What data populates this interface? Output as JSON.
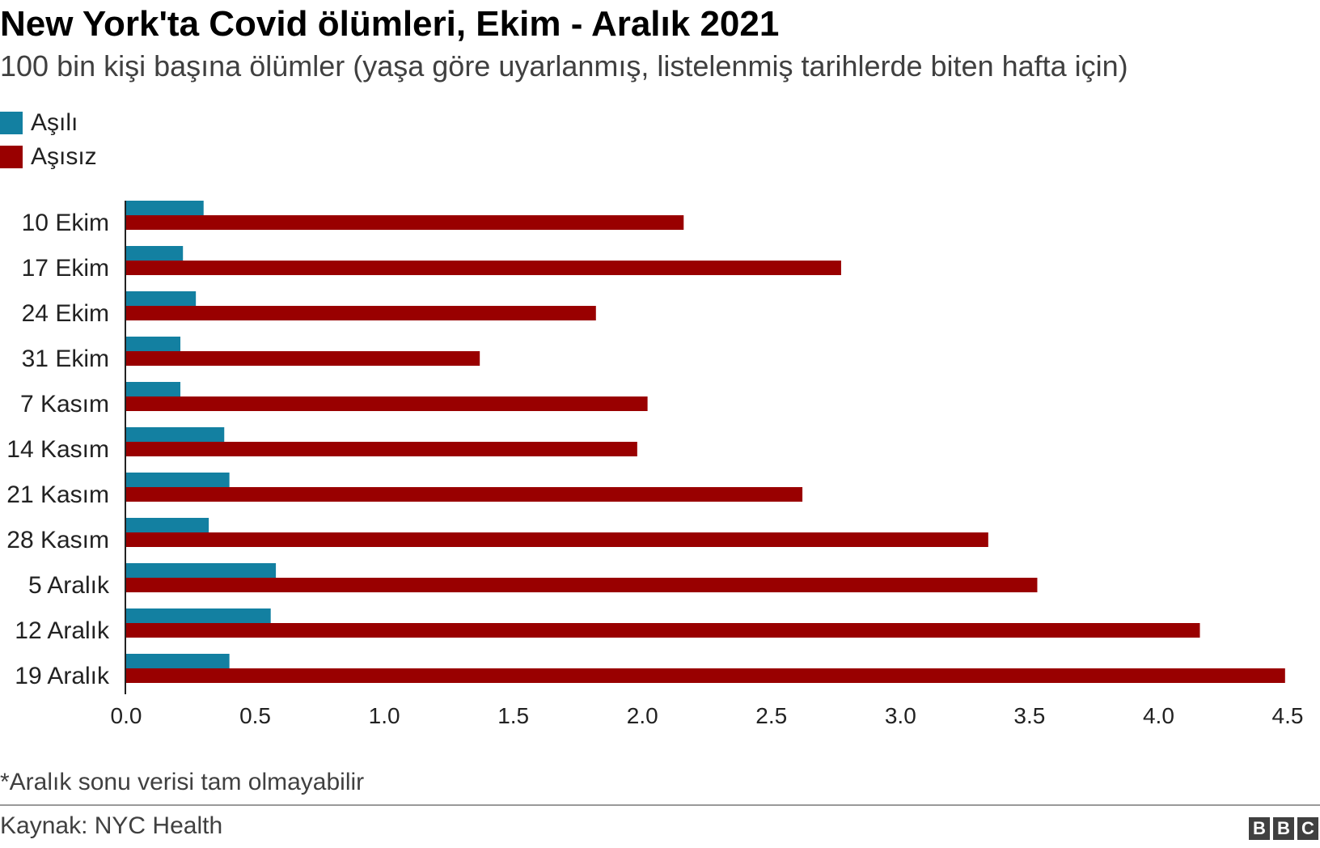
{
  "chart_data": {
    "type": "bar",
    "orientation": "horizontal",
    "title": "New York'ta Covid ölümleri, Ekim - Aralık 2021",
    "subtitle": "100 bin kişi başına ölümler (yaşa göre uyarlanmış, listelenmiş tarihlerde biten hafta için)",
    "categories": [
      "10 Ekim",
      "17 Ekim",
      "24 Ekim",
      "31 Ekim",
      "7 Kasım",
      "14 Kasım",
      "21 Kasım",
      "28 Kasım",
      "5 Aralık",
      "12 Aralık",
      "19 Aralık"
    ],
    "series": [
      {
        "name": "Aşılı",
        "color": "#1380a1",
        "values": [
          0.3,
          0.22,
          0.27,
          0.21,
          0.21,
          0.38,
          0.4,
          0.32,
          0.58,
          0.56,
          0.4
        ]
      },
      {
        "name": "Aşısız",
        "color": "#990000",
        "values": [
          2.16,
          2.77,
          1.82,
          1.37,
          2.02,
          1.98,
          2.62,
          3.34,
          3.53,
          4.16,
          4.49
        ]
      }
    ],
    "xlim": [
      0,
      4.5
    ],
    "xticks": [
      "0.0",
      "0.5",
      "1.0",
      "1.5",
      "2.0",
      "2.5",
      "3.0",
      "3.5",
      "4.0",
      "4.5"
    ],
    "xlabel": "",
    "ylabel": "",
    "grid": false,
    "legend_position": "top-left"
  },
  "footnote": "*Aralık sonu verisi tam olmayabilir",
  "source": "Kaynak: NYC Health",
  "logo": {
    "letters": [
      "B",
      "B",
      "C"
    ]
  }
}
